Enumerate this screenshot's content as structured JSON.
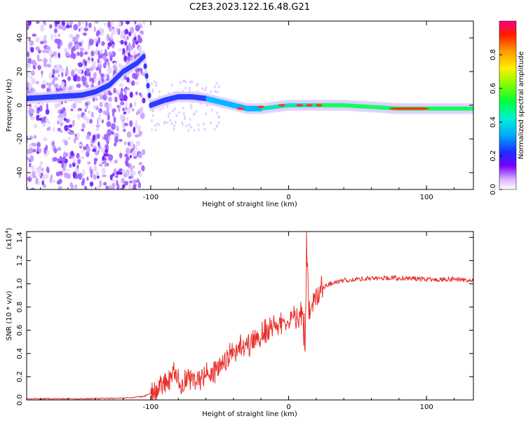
{
  "title": "C2E3.2023.122.16.48.G21",
  "chart_data": [
    {
      "type": "heatmap",
      "xlabel": "Height of straight line (km)",
      "ylabel": "Frequency (Hz)",
      "xlim": [
        -190,
        134
      ],
      "ylim": [
        -50,
        50
      ],
      "x_ticks": [
        -100,
        0,
        100
      ],
      "y_ticks": [
        -40,
        -20,
        0,
        20,
        40
      ],
      "colorbar": {
        "label": "Normalized spectral amplitude",
        "range": [
          0.0,
          1.0
        ],
        "ticks": [
          "0.0",
          "0.2",
          "0.4",
          "0.6",
          "0.8"
        ]
      },
      "signal_track": {
        "height_km": [
          -190,
          -170,
          -150,
          -140,
          -130,
          -120,
          -110,
          -105,
          -100,
          -90,
          -80,
          -70,
          -60,
          -50,
          -40,
          -30,
          -20,
          -10,
          0,
          10,
          20,
          40,
          60,
          80,
          100,
          120,
          134
        ],
        "frequency_hz": [
          4,
          5,
          6,
          8,
          12,
          20,
          25,
          29,
          0,
          3,
          5,
          5,
          4,
          2,
          0,
          -2,
          -2,
          -1,
          0,
          0,
          0,
          0,
          -1,
          -2,
          -2,
          -2,
          -2
        ]
      }
    },
    {
      "type": "line",
      "xlabel": "Height of straight line (km)",
      "ylabel": "SNR (10 * v/v)",
      "y_scale_label": "(x10",
      "y_scale_exp": "4",
      "xlim": [
        -190,
        134
      ],
      "ylim": [
        0,
        1.45
      ],
      "x_ticks": [
        -100,
        0,
        100
      ],
      "y_ticks": [
        "0.0",
        "0.2",
        "0.4",
        "0.6",
        "0.8",
        "1.0",
        "1.2",
        "1.4"
      ],
      "series": [
        {
          "color": "#e8302a",
          "x": [
            -190,
            -150,
            -120,
            -105,
            -100,
            -95,
            -90,
            -82,
            -78,
            -70,
            -62,
            -55,
            -48,
            -40,
            -32,
            -25,
            -18,
            -10,
            -5,
            0,
            5,
            10,
            12,
            13,
            15,
            20,
            25,
            30,
            40,
            60,
            80,
            100,
            120,
            134
          ],
          "y": [
            0.01,
            0.01,
            0.015,
            0.03,
            0.06,
            0.1,
            0.13,
            0.22,
            0.15,
            0.2,
            0.18,
            0.25,
            0.32,
            0.42,
            0.45,
            0.5,
            0.58,
            0.62,
            0.66,
            0.7,
            0.72,
            0.75,
            0.5,
            1.3,
            0.75,
            0.88,
            0.97,
            1.0,
            1.03,
            1.05,
            1.05,
            1.04,
            1.04,
            1.03
          ]
        }
      ]
    }
  ]
}
